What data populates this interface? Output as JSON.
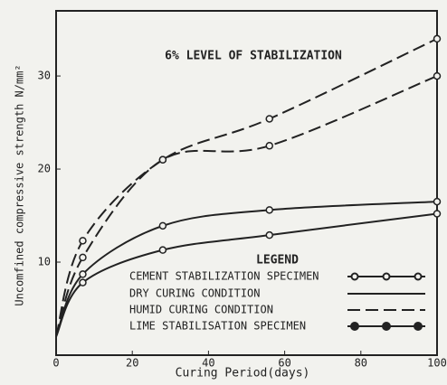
{
  "chart_data": {
    "type": "line",
    "annotation": "6% LEVEL OF STABILIZATION",
    "x_label": "Curing Period(days)",
    "y_label": "Uncomfined compressive strength N/mm²",
    "x": [
      0,
      7,
      28,
      56,
      100
    ],
    "series": [
      {
        "color": "#222",
        "dash": true,
        "values": [
          2,
          12.3,
          21,
          25.4,
          34
        ]
      },
      {
        "color": "#222",
        "dash": true,
        "values": [
          2,
          10.5,
          21,
          22.5,
          30
        ]
      },
      {
        "color": "#222",
        "dash": false,
        "values": [
          2,
          8.7,
          13.9,
          15.6,
          16.5
        ]
      },
      {
        "color": "#222",
        "dash": false,
        "values": [
          2,
          7.8,
          11.3,
          12.9,
          15.2
        ]
      }
    ],
    "xlim": [
      0,
      100
    ],
    "ylim": [
      0,
      37
    ],
    "xticks": [
      0,
      20,
      40,
      60,
      80,
      100
    ],
    "yticks": [
      10,
      20,
      30
    ],
    "legend": {
      "title": "LEGEND",
      "entries": [
        "CEMENT STABILIZATION SPECIMEN",
        "DRY CURING CONDITION",
        "HUMID CURING CONDITION",
        "LIME STABILISATION SPECIMEN"
      ]
    }
  }
}
